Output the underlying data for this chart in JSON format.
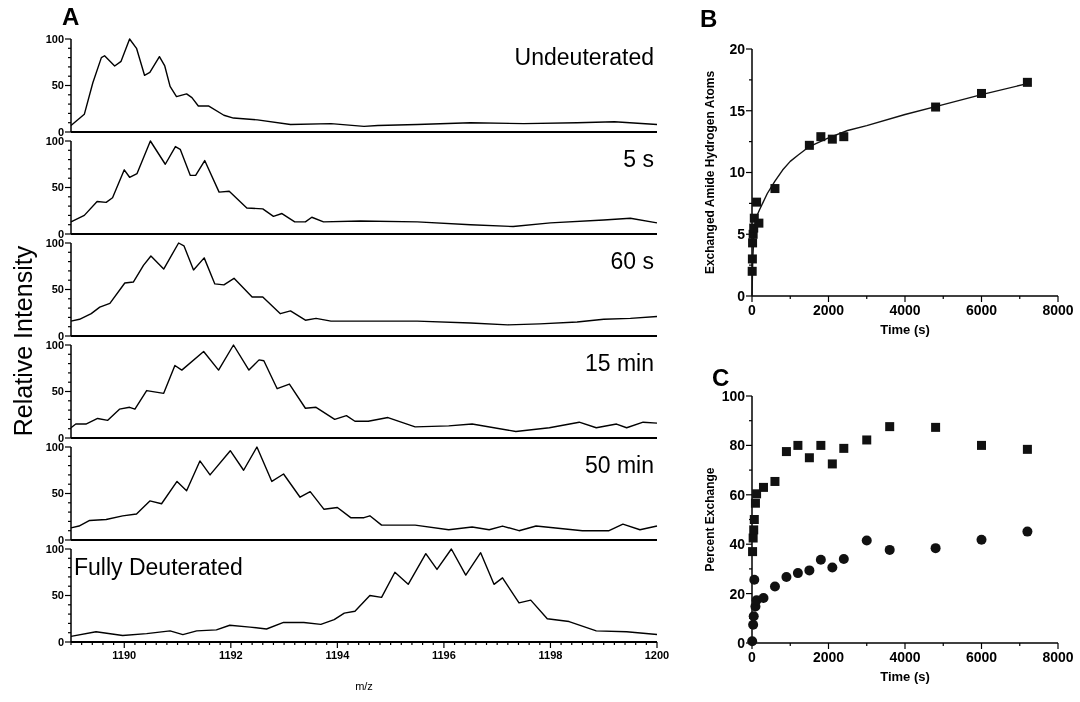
{
  "chart_data": [
    {
      "type": "line",
      "title": "Undeuterated",
      "ylabel": "Relative Intensity",
      "annotations": [
        "A"
      ],
      "xlim": [
        1189,
        1200
      ],
      "ylim": [
        0,
        100
      ],
      "yticks": [
        0,
        {
          "value": 10,
          "label": null
        },
        {
          "value": 20,
          "label": null
        },
        {
          "value": 30,
          "label": null
        },
        {
          "value": 40,
          "label": null
        },
        50,
        {
          "value": 60,
          "label": null
        },
        {
          "value": 70,
          "label": null
        },
        {
          "value": 80,
          "label": null
        },
        {
          "value": 90,
          "label": null
        },
        100
      ],
      "tick_labels": "y",
      "line_style": "solid",
      "x": [
        1189,
        1189.25,
        1189.41,
        1189.57,
        1189.63,
        1189.82,
        1189.94,
        1190.1,
        1190.23,
        1190.38,
        1190.48,
        1190.66,
        1190.76,
        1190.86,
        1190.98,
        1191.17,
        1191.27,
        1191.39,
        1191.58,
        1191.87,
        1192.05,
        1192.5,
        1193.12,
        1193.88,
        1194.5,
        1194.76,
        1195.5,
        1196.5,
        1197.5,
        1198.5,
        1199.2,
        1200
      ],
      "series": [
        {
          "color": "#000000",
          "values": [
            7,
            19,
            53,
            80,
            82,
            71,
            76,
            100,
            90,
            61,
            64,
            81,
            71,
            49,
            38,
            41,
            37,
            28,
            28,
            18,
            15,
            13,
            8,
            9,
            6,
            7,
            8,
            10,
            9,
            10,
            11,
            8
          ]
        }
      ]
    },
    {
      "type": "line",
      "title": "5 s",
      "xlim": [
        1189,
        1200
      ],
      "ylim": [
        0,
        100
      ],
      "yticks": [
        0,
        {
          "value": 10,
          "label": null
        },
        {
          "value": 20,
          "label": null
        },
        {
          "value": 30,
          "label": null
        },
        {
          "value": 40,
          "label": null
        },
        50,
        {
          "value": 60,
          "label": null
        },
        {
          "value": 70,
          "label": null
        },
        {
          "value": 80,
          "label": null
        },
        {
          "value": 90,
          "label": null
        },
        100
      ],
      "tick_labels": "y",
      "line_style": "solid",
      "x": [
        1189,
        1189.25,
        1189.49,
        1189.66,
        1189.78,
        1190,
        1190.1,
        1190.24,
        1190.49,
        1190.77,
        1190.96,
        1191.05,
        1191.24,
        1191.34,
        1191.51,
        1191.78,
        1191.97,
        1192.3,
        1192.6,
        1192.8,
        1192.96,
        1193.2,
        1193.4,
        1193.52,
        1193.74,
        1194.43,
        1195.5,
        1196.5,
        1197.3,
        1198,
        1199,
        1199.5,
        1200
      ],
      "series": [
        {
          "color": "#000000",
          "values": [
            13,
            20,
            35,
            34,
            39,
            69,
            61,
            65,
            100,
            75,
            94,
            91,
            63,
            63,
            79,
            45,
            46,
            28,
            27,
            19,
            22,
            13,
            13,
            18,
            13,
            14,
            13,
            10,
            8,
            12,
            15,
            17,
            12
          ]
        }
      ]
    },
    {
      "type": "line",
      "title": "60 s",
      "xlim": [
        1189,
        1200
      ],
      "ylim": [
        0,
        100
      ],
      "yticks": [
        0,
        {
          "value": 10,
          "label": null
        },
        {
          "value": 20,
          "label": null
        },
        {
          "value": 30,
          "label": null
        },
        {
          "value": 40,
          "label": null
        },
        50,
        {
          "value": 60,
          "label": null
        },
        {
          "value": 70,
          "label": null
        },
        {
          "value": 80,
          "label": null
        },
        {
          "value": 90,
          "label": null
        },
        100
      ],
      "tick_labels": "y",
      "line_style": "solid",
      "x": [
        1189,
        1189.16,
        1189.38,
        1189.54,
        1189.73,
        1190.01,
        1190.17,
        1190.36,
        1190.5,
        1190.74,
        1191.02,
        1191.12,
        1191.3,
        1191.5,
        1191.7,
        1191.87,
        1192.06,
        1192.4,
        1192.6,
        1192.93,
        1193.12,
        1193.4,
        1193.6,
        1193.88,
        1194.5,
        1195.5,
        1196.5,
        1197.2,
        1197.8,
        1198.5,
        1199,
        1199.5,
        1200
      ],
      "series": [
        {
          "color": "#000000",
          "values": [
            16,
            18,
            24,
            31,
            35,
            57,
            58,
            76,
            86,
            72,
            100,
            97,
            71,
            84,
            56,
            55,
            62,
            42,
            42,
            24,
            27,
            17,
            19,
            16,
            16,
            16,
            14,
            12,
            13,
            15,
            18,
            19,
            21
          ]
        }
      ]
    },
    {
      "type": "line",
      "title": "15 min",
      "xlim": [
        1189,
        1200
      ],
      "ylim": [
        0,
        100
      ],
      "yticks": [
        0,
        {
          "value": 10,
          "label": null
        },
        {
          "value": 20,
          "label": null
        },
        {
          "value": 30,
          "label": null
        },
        {
          "value": 40,
          "label": null
        },
        50,
        {
          "value": 60,
          "label": null
        },
        {
          "value": 70,
          "label": null
        },
        {
          "value": 80,
          "label": null
        },
        {
          "value": 90,
          "label": null
        },
        100
      ],
      "tick_labels": "y",
      "line_style": "solid",
      "x": [
        1189,
        1189.09,
        1189.28,
        1189.5,
        1189.69,
        1189.91,
        1190.1,
        1190.2,
        1190.42,
        1190.74,
        1190.95,
        1191.08,
        1191.49,
        1191.77,
        1192.05,
        1192.34,
        1192.53,
        1192.62,
        1192.87,
        1193.1,
        1193.4,
        1193.6,
        1193.95,
        1194.17,
        1194.33,
        1194.58,
        1194.95,
        1195.46,
        1196.09,
        1196.53,
        1197.35,
        1197.98,
        1198.54,
        1198.86,
        1199.24,
        1199.43,
        1199.74,
        1200
      ],
      "series": [
        {
          "color": "#000000",
          "values": [
            11,
            15,
            15,
            21,
            19,
            31,
            33,
            31,
            51,
            48,
            78,
            73,
            93,
            73,
            100,
            73,
            84,
            83,
            53,
            58,
            32,
            33,
            20,
            24,
            18,
            18,
            22,
            12,
            13,
            15,
            7,
            11,
            17,
            11,
            15,
            11,
            17,
            16
          ]
        }
      ]
    },
    {
      "type": "line",
      "title": "50 min",
      "xlim": [
        1189,
        1200
      ],
      "ylim": [
        0,
        100
      ],
      "yticks": [
        0,
        {
          "value": 10,
          "label": null
        },
        {
          "value": 20,
          "label": null
        },
        {
          "value": 30,
          "label": null
        },
        {
          "value": 40,
          "label": null
        },
        50,
        {
          "value": 60,
          "label": null
        },
        {
          "value": 70,
          "label": null
        },
        {
          "value": 80,
          "label": null
        },
        {
          "value": 90,
          "label": null
        },
        100
      ],
      "tick_labels": "y",
      "line_style": "solid",
      "x": [
        1189,
        1189.15,
        1189.35,
        1189.66,
        1189.97,
        1190.23,
        1190.48,
        1190.7,
        1190.99,
        1191.17,
        1191.42,
        1191.61,
        1191.99,
        1192.24,
        1192.49,
        1192.77,
        1192.99,
        1193.3,
        1193.49,
        1193.75,
        1194,
        1194.25,
        1194.5,
        1194.61,
        1194.83,
        1195.46,
        1196.09,
        1196.53,
        1196.85,
        1197.1,
        1197.41,
        1197.73,
        1198.6,
        1199.1,
        1199.36,
        1199.68,
        1200
      ],
      "series": [
        {
          "color": "#000000",
          "values": [
            13,
            15,
            21,
            22,
            26,
            28,
            42,
            39,
            63,
            53,
            85,
            70,
            96,
            75,
            100,
            63,
            71,
            46,
            52,
            33,
            35,
            24,
            24,
            26,
            16,
            16,
            11,
            14,
            11,
            15,
            10,
            15,
            10,
            10,
            17,
            11,
            15
          ]
        }
      ]
    },
    {
      "type": "line",
      "title": "Fully Deuterated",
      "xlabel": "m/z",
      "xlim": [
        1189,
        1200
      ],
      "ylim": [
        0,
        100
      ],
      "yticks": [
        0,
        {
          "value": 10,
          "label": null
        },
        {
          "value": 20,
          "label": null
        },
        {
          "value": 30,
          "label": null
        },
        {
          "value": 40,
          "label": null
        },
        50,
        {
          "value": 60,
          "label": null
        },
        {
          "value": 70,
          "label": null
        },
        {
          "value": 80,
          "label": null
        },
        {
          "value": 90,
          "label": null
        },
        100
      ],
      "line_style": "solid",
      "xticks": [
        {
          "value": 1189,
          "label": null
        },
        {
          "value": 1189.2,
          "label": null
        },
        {
          "value": 1189.4,
          "label": null
        },
        {
          "value": 1189.6,
          "label": null
        },
        {
          "value": 1189.8,
          "label": null
        },
        1190,
        {
          "value": 1190.2,
          "label": null
        },
        {
          "value": 1190.4,
          "label": null
        },
        {
          "value": 1190.6,
          "label": null
        },
        {
          "value": 1190.8,
          "label": null
        },
        {
          "value": 1191,
          "label": null
        },
        {
          "value": 1191.2,
          "label": null
        },
        {
          "value": 1191.4,
          "label": null
        },
        {
          "value": 1191.6,
          "label": null
        },
        {
          "value": 1191.8,
          "label": null
        },
        1192,
        {
          "value": 1192.2,
          "label": null
        },
        {
          "value": 1192.4,
          "label": null
        },
        {
          "value": 1192.6,
          "label": null
        },
        {
          "value": 1192.8,
          "label": null
        },
        {
          "value": 1193,
          "label": null
        },
        {
          "value": 1193.2,
          "label": null
        },
        {
          "value": 1193.4,
          "label": null
        },
        {
          "value": 1193.6,
          "label": null
        },
        {
          "value": 1193.8,
          "label": null
        },
        1194,
        {
          "value": 1194.2,
          "label": null
        },
        {
          "value": 1194.4,
          "label": null
        },
        {
          "value": 1194.6,
          "label": null
        },
        {
          "value": 1194.8,
          "label": null
        },
        {
          "value": 1195,
          "label": null
        },
        {
          "value": 1195.2,
          "label": null
        },
        {
          "value": 1195.4,
          "label": null
        },
        {
          "value": 1195.6,
          "label": null
        },
        {
          "value": 1195.8,
          "label": null
        },
        1196,
        {
          "value": 1196.2,
          "label": null
        },
        {
          "value": 1196.4,
          "label": null
        },
        {
          "value": 1196.6,
          "label": null
        },
        {
          "value": 1196.8,
          "label": null
        },
        {
          "value": 1197,
          "label": null
        },
        {
          "value": 1197.2,
          "label": null
        },
        {
          "value": 1197.4,
          "label": null
        },
        {
          "value": 1197.6,
          "label": null
        },
        {
          "value": 1197.8,
          "label": null
        },
        1198,
        {
          "value": 1198.2,
          "label": null
        },
        {
          "value": 1198.4,
          "label": null
        },
        {
          "value": 1198.6,
          "label": null
        },
        {
          "value": 1198.8,
          "label": null
        },
        {
          "value": 1199,
          "label": null
        },
        {
          "value": 1199.2,
          "label": null
        },
        {
          "value": 1199.4,
          "label": null
        },
        {
          "value": 1199.6,
          "label": null
        },
        {
          "value": 1199.8,
          "label": null
        },
        1200
      ],
      "x": [
        1189,
        1189.47,
        1189.97,
        1190.42,
        1190.86,
        1191.1,
        1191.36,
        1191.73,
        1191.98,
        1192.36,
        1192.67,
        1192.99,
        1193.37,
        1193.69,
        1193.94,
        1194.13,
        1194.33,
        1194.61,
        1194.83,
        1195.08,
        1195.33,
        1195.66,
        1195.87,
        1196.14,
        1196.41,
        1196.69,
        1196.94,
        1197.1,
        1197.41,
        1197.63,
        1197.94,
        1198.35,
        1198.86,
        1199.43,
        1200
      ],
      "series": [
        {
          "color": "#000000",
          "values": [
            6,
            11,
            7,
            9,
            12,
            8,
            12,
            13,
            18,
            16,
            14,
            21,
            21,
            19,
            24,
            31,
            33,
            50,
            48,
            75,
            62,
            95,
            78,
            100,
            72,
            96,
            62,
            69,
            42,
            45,
            25,
            22,
            12,
            11,
            8
          ]
        }
      ]
    },
    {
      "type": "scatter",
      "annotations": [
        "B"
      ],
      "xlabel": "Time (s)",
      "ylabel": "Exchanged Amide Hydrogen Atoms",
      "xlim": [
        0,
        8000
      ],
      "ylim": [
        0,
        20
      ],
      "xticks": [
        0,
        {
          "value": 1000,
          "label": null
        },
        2000,
        {
          "value": 3000,
          "label": null
        },
        4000,
        {
          "value": 5000,
          "label": null
        },
        6000,
        {
          "value": 7000,
          "label": null
        },
        8000
      ],
      "yticks": [
        0,
        {
          "value": 2.5,
          "label": null
        },
        5,
        {
          "value": 7.5,
          "label": null
        },
        10,
        {
          "value": 12.5,
          "label": null
        },
        15,
        {
          "value": 17.5,
          "label": null
        },
        20
      ],
      "series": [
        {
          "marker": "square",
          "color": "#111111",
          "x": [
            5,
            10,
            15,
            30,
            45,
            60,
            120,
            180,
            600,
            1500,
            1800,
            2100,
            2400,
            4800,
            6000,
            7200
          ],
          "values": [
            2,
            3,
            4.3,
            5,
            5.5,
            6.3,
            7.6,
            5.9,
            8.7,
            12.2,
            12.9,
            12.7,
            12.9,
            15.3,
            16.4,
            17.3
          ]
        },
        {
          "type": "line",
          "marker": "none",
          "line_style": "solid",
          "color": "#111111",
          "x": [
            0,
            20,
            50,
            100,
            200,
            400,
            600,
            800,
            1000,
            1200,
            1500,
            2000,
            2500,
            3000,
            4000,
            5000,
            6000,
            7200
          ],
          "values": [
            0,
            3,
            5,
            6.3,
            7,
            8.3,
            9.3,
            10.2,
            10.9,
            11.4,
            12.1,
            12.8,
            13.4,
            13.8,
            14.7,
            15.5,
            16.3,
            17.2
          ]
        }
      ]
    },
    {
      "type": "scatter",
      "annotations": [
        "C"
      ],
      "xlabel": "Time (s)",
      "ylabel": "Percent Exchange",
      "xlim": [
        0,
        8000
      ],
      "ylim": [
        0,
        100
      ],
      "xticks": [
        0,
        {
          "value": 1000,
          "label": null
        },
        2000,
        {
          "value": 3000,
          "label": null
        },
        4000,
        {
          "value": 5000,
          "label": null
        },
        6000,
        {
          "value": 7000,
          "label": null
        },
        8000
      ],
      "yticks": [
        0,
        {
          "value": 10,
          "label": null
        },
        20,
        {
          "value": 30,
          "label": null
        },
        40,
        {
          "value": 50,
          "label": null
        },
        60,
        {
          "value": 70,
          "label": null
        },
        80,
        {
          "value": 90,
          "label": null
        },
        100
      ],
      "series": [
        {
          "marker": "square",
          "color": "#111111",
          "x": [
            15,
            30,
            45,
            60,
            90,
            120,
            300,
            600,
            900,
            1200,
            1500,
            1800,
            2100,
            2400,
            3000,
            3600,
            4800,
            6000,
            7200
          ],
          "values": [
            37,
            42.5,
            45.8,
            50,
            56.6,
            60.4,
            63,
            65.4,
            77.5,
            80,
            75,
            80,
            72.5,
            78.8,
            82.2,
            87.6,
            87.3,
            80,
            78.4
          ]
        },
        {
          "marker": "circle",
          "color": "#111111",
          "x": [
            5,
            30,
            45,
            60,
            90,
            120,
            300,
            600,
            900,
            1200,
            1500,
            1800,
            2100,
            2400,
            3000,
            3600,
            4800,
            6000,
            7200
          ],
          "values": [
            0.7,
            7.4,
            10.8,
            25.6,
            14.8,
            17.3,
            18.2,
            22.9,
            26.7,
            28.3,
            29.4,
            33.7,
            30.6,
            34,
            41.5,
            37.7,
            38.4,
            41.8,
            45.1
          ]
        }
      ]
    }
  ]
}
